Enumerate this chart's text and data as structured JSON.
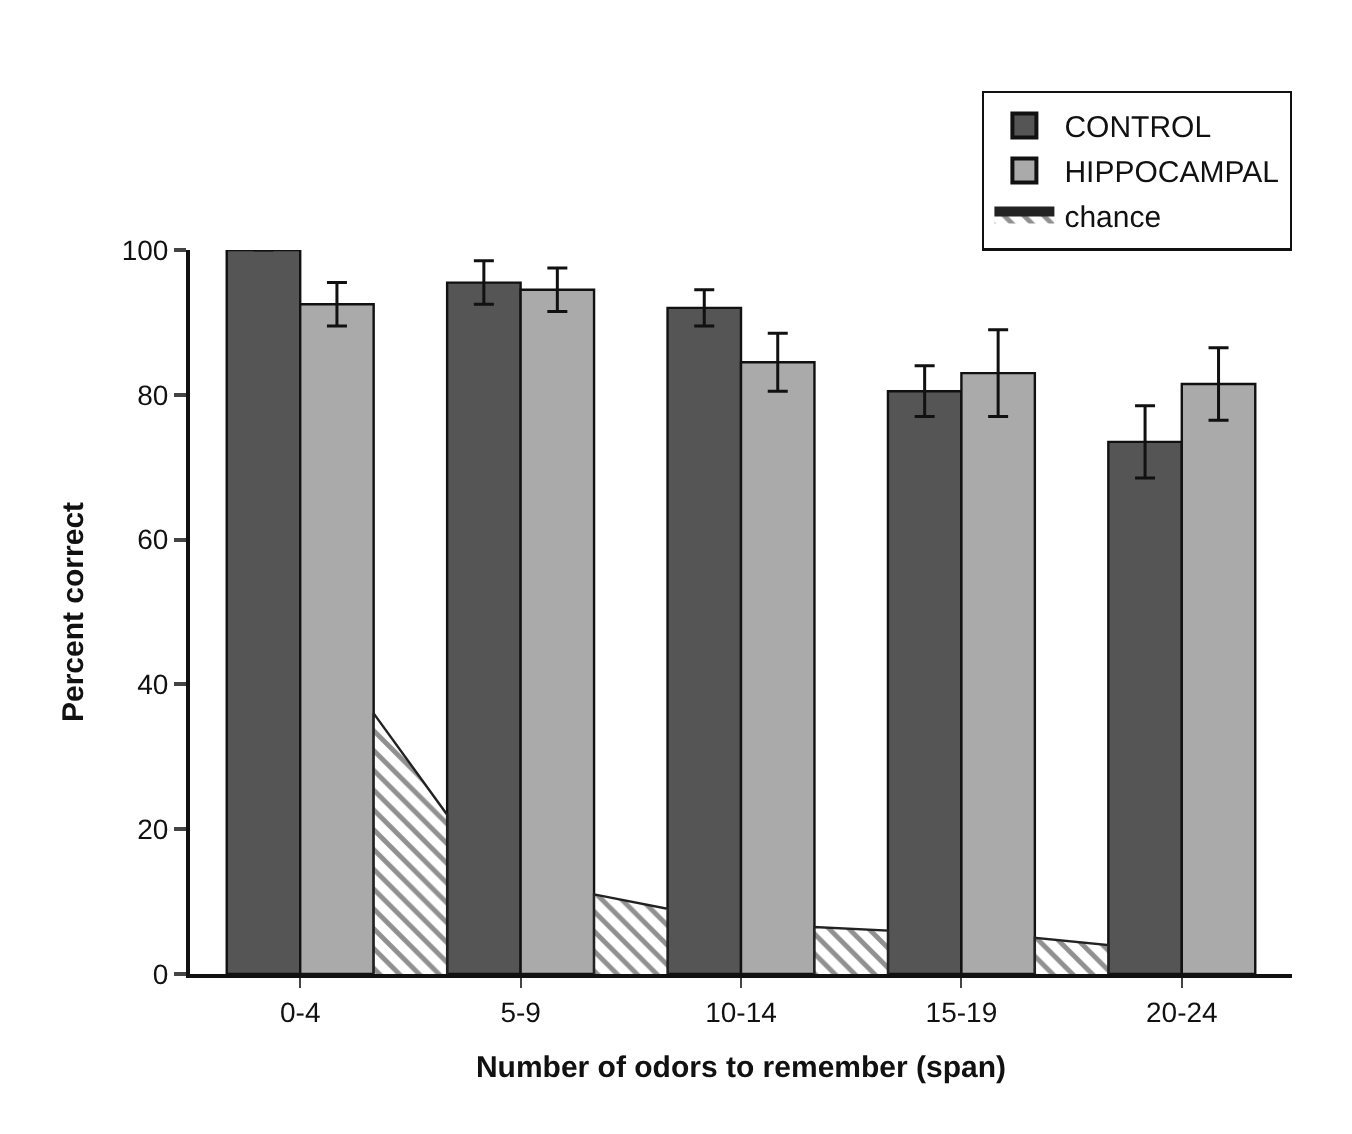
{
  "chart_data": {
    "type": "bar",
    "xlabel": "Number of odors to remember (span)",
    "ylabel": "Percent correct",
    "categories": [
      "0-4",
      null,
      null,
      "5-9",
      null,
      null,
      "10-14",
      null,
      null,
      "15-19",
      null,
      null,
      "20-24"
    ],
    "ylim": [
      0,
      100
    ],
    "yticks": [
      0,
      20,
      40,
      60,
      80,
      100
    ],
    "series": [
      {
        "name": "CONTROL",
        "color": "#555555",
        "values": [
          100,
          null,
          null,
          95.5,
          null,
          null,
          92,
          null,
          null,
          80.5,
          null,
          null,
          73.5
        ],
        "errors": [
          null,
          null,
          null,
          3,
          null,
          null,
          2.5,
          null,
          null,
          3.5,
          null,
          null,
          5
        ]
      },
      {
        "name": "HIPPOCAMPAL",
        "color": "#aaaaaa",
        "values": [
          92.5,
          null,
          null,
          94.5,
          null,
          null,
          84.5,
          null,
          null,
          83,
          null,
          null,
          81.5
        ],
        "errors": [
          3,
          null,
          null,
          3,
          null,
          null,
          4,
          null,
          null,
          6,
          null,
          null,
          5
        ]
      },
      {
        "name": "chance",
        "type": "area",
        "color": "#222222",
        "values": [
          null,
          36,
          22,
          null,
          11,
          9,
          null,
          6.5,
          6,
          null,
          5,
          4,
          null
        ]
      }
    ],
    "legend": "top right"
  }
}
